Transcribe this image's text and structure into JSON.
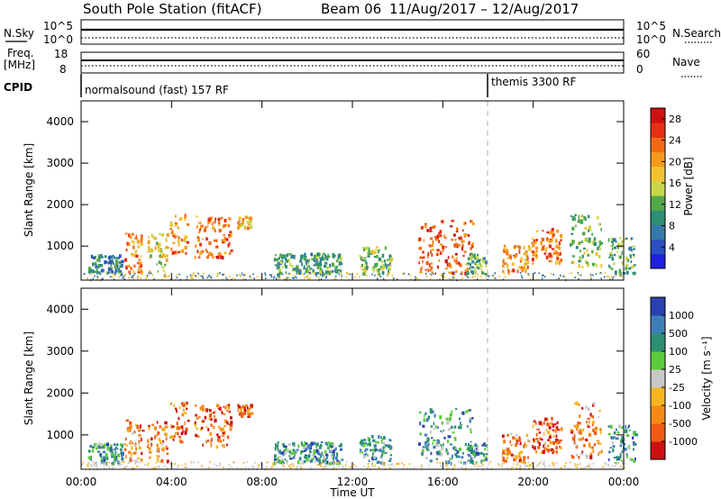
{
  "figure": {
    "title": "South Pole Station (fitACF)",
    "beam": "Beam 06",
    "dates": "11/Aug/2017 – 12/Aug/2017"
  },
  "panels": {
    "nsky_label": "N.Sky",
    "nsearch_label": "N.Search",
    "counts_ticks_left": [
      "10^5",
      "10^0"
    ],
    "counts_ticks_right": [
      "10^5",
      "10^0"
    ],
    "freq_label_line1": "Freq.",
    "freq_label_line2": "[MHz]",
    "freq_ticks": [
      "18",
      "8"
    ],
    "nave_label": "Nave",
    "nave_ticks": [
      "60",
      "0"
    ],
    "cpid_label": "CPID",
    "cpid_segments": [
      {
        "label": "normalsound (fast) 157 RF",
        "start_hour": 0
      },
      {
        "label": "themis 3300 RF",
        "start_hour": 18
      }
    ]
  },
  "chart_data": [
    {
      "type": "heatmap",
      "name": "power-panel",
      "xlabel": "Time UT",
      "ylabel": "Slant Range [km]",
      "xlim": [
        0,
        24
      ],
      "ylim": [
        180,
        4500
      ],
      "xticks": [
        "00:00",
        "04:00",
        "08:00",
        "12:00",
        "16:00",
        "20:00",
        "00:00"
      ],
      "yticks": [
        1000,
        2000,
        3000,
        4000
      ],
      "marker_line_hour": 18,
      "colorbar": {
        "label": "Power [dB]",
        "ticks": [
          4,
          8,
          12,
          16,
          20,
          24,
          28
        ],
        "range": [
          0,
          30
        ],
        "colors": [
          "#1f1fe0",
          "#2a4fbf",
          "#3579a8",
          "#2e8f73",
          "#53a84a",
          "#c8d64a",
          "#f2c230",
          "#f59a1f",
          "#f36a16",
          "#e62f12",
          "#d01010"
        ]
      },
      "clusters": [
        {
          "t": 0.3,
          "w": 1.5,
          "r0": 350,
          "r1": 820,
          "v": 8
        },
        {
          "t": 1.9,
          "w": 0.8,
          "r0": 380,
          "r1": 1450,
          "v": 21
        },
        {
          "t": 2.9,
          "w": 0.9,
          "r0": 380,
          "r1": 1350,
          "v": 17
        },
        {
          "t": 3.9,
          "w": 0.8,
          "r0": 850,
          "r1": 1800,
          "v": 21
        },
        {
          "t": 5.0,
          "w": 1.6,
          "r0": 750,
          "r1": 1750,
          "v": 23
        },
        {
          "t": 6.9,
          "w": 0.6,
          "r0": 1450,
          "r1": 1750,
          "v": 19
        },
        {
          "t": 8.5,
          "w": 3.0,
          "r0": 350,
          "r1": 850,
          "v": 10
        },
        {
          "t": 12.3,
          "w": 1.4,
          "r0": 350,
          "r1": 1000,
          "v": 13
        },
        {
          "t": 14.9,
          "w": 2.4,
          "r0": 350,
          "r1": 1650,
          "v": 24
        },
        {
          "t": 17.0,
          "w": 0.9,
          "r0": 350,
          "r1": 850,
          "v": 11
        },
        {
          "t": 18.6,
          "w": 1.2,
          "r0": 400,
          "r1": 1050,
          "v": 21
        },
        {
          "t": 19.9,
          "w": 1.3,
          "r0": 600,
          "r1": 1450,
          "v": 23
        },
        {
          "t": 21.6,
          "w": 1.4,
          "r0": 500,
          "r1": 1800,
          "v": 13
        },
        {
          "t": 23.3,
          "w": 1.2,
          "r0": 350,
          "r1": 1250,
          "v": 11
        }
      ]
    },
    {
      "type": "heatmap",
      "name": "velocity-panel",
      "xlabel": "Time UT",
      "ylabel": "Slant Range [km]",
      "xlim": [
        0,
        24
      ],
      "ylim": [
        180,
        4500
      ],
      "xticks": [
        "00:00",
        "04:00",
        "08:00",
        "12:00",
        "16:00",
        "20:00",
        "00:00"
      ],
      "yticks": [
        1000,
        2000,
        3000,
        4000
      ],
      "marker_line_hour": 18,
      "colorbar": {
        "label": "Velocity [m s⁻¹]",
        "ticks": [
          "1000",
          "500",
          "100",
          "25",
          "-25",
          "-100",
          "-500",
          "-1000"
        ],
        "colors": [
          "#2a3fb0",
          "#3f7fb8",
          "#2e8f73",
          "#5ccc3c",
          "#c8c8c8",
          "#f5b620",
          "#f58a18",
          "#f05a14",
          "#d01010"
        ]
      },
      "clusters": [
        {
          "t": 0.3,
          "w": 1.5,
          "r0": 350,
          "r1": 820,
          "v": 2
        },
        {
          "t": 1.9,
          "w": 0.8,
          "r0": 380,
          "r1": 1450,
          "v": 6
        },
        {
          "t": 2.9,
          "w": 0.9,
          "r0": 380,
          "r1": 1350,
          "v": 6
        },
        {
          "t": 3.9,
          "w": 0.8,
          "r0": 850,
          "r1": 1800,
          "v": 7
        },
        {
          "t": 5.0,
          "w": 1.6,
          "r0": 750,
          "r1": 1750,
          "v": 7
        },
        {
          "t": 6.9,
          "w": 0.6,
          "r0": 1450,
          "r1": 1750,
          "v": 7
        },
        {
          "t": 8.5,
          "w": 3.0,
          "r0": 350,
          "r1": 850,
          "v": 2
        },
        {
          "t": 12.3,
          "w": 1.4,
          "r0": 350,
          "r1": 1000,
          "v": 2
        },
        {
          "t": 14.9,
          "w": 2.4,
          "r0": 350,
          "r1": 1650,
          "v": 2
        },
        {
          "t": 17.0,
          "w": 0.9,
          "r0": 350,
          "r1": 850,
          "v": 2
        },
        {
          "t": 18.6,
          "w": 1.2,
          "r0": 400,
          "r1": 1050,
          "v": 6
        },
        {
          "t": 19.9,
          "w": 1.3,
          "r0": 600,
          "r1": 1450,
          "v": 7
        },
        {
          "t": 21.6,
          "w": 1.4,
          "r0": 500,
          "r1": 1800,
          "v": 6
        },
        {
          "t": 23.3,
          "w": 1.2,
          "r0": 350,
          "r1": 1250,
          "v": 2
        }
      ]
    }
  ]
}
